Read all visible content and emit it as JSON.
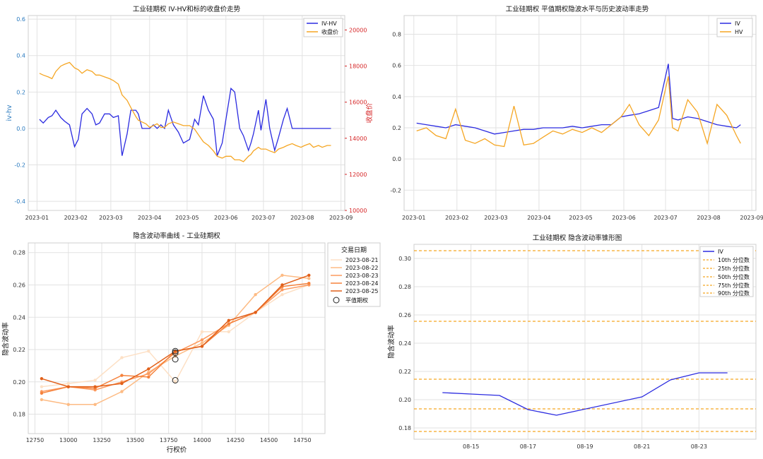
{
  "chart_data": [
    {
      "type": "line",
      "title": "工业硅期权 IV-HV和标的收盘价走势",
      "ylabel": "iv-hv",
      "y2label": "收盘价",
      "ylim": [
        -0.45,
        0.62
      ],
      "y2lim": [
        10000,
        20800
      ],
      "yticks": [
        -0.4,
        -0.2,
        0.0,
        0.2,
        0.4,
        0.6
      ],
      "y2ticks": [
        10000,
        12000,
        14000,
        16000,
        18000,
        20000
      ],
      "xlim": [
        "2022-12-25",
        "2023-09-04"
      ],
      "xticks": [
        "2023-01",
        "2023-02",
        "2023-03",
        "2023-04",
        "2023-05",
        "2023-06",
        "2023-07",
        "2023-08",
        "2023-09"
      ],
      "xtick_dates": [
        "2023-01-01",
        "2023-02-01",
        "2023-03-01",
        "2023-04-01",
        "2023-05-01",
        "2023-06-01",
        "2023-07-01",
        "2023-08-01",
        "2023-09-01"
      ],
      "grid": true,
      "legend_position": "top-right",
      "series": [
        {
          "name": "IV-HV",
          "axis": "left",
          "color": "#2b2be0",
          "x": [
            "2023-01-03",
            "2023-01-06",
            "2023-01-10",
            "2023-01-13",
            "2023-01-16",
            "2023-01-20",
            "2023-01-23",
            "2023-01-27",
            "2023-01-31",
            "2023-02-03",
            "2023-02-06",
            "2023-02-10",
            "2023-02-14",
            "2023-02-17",
            "2023-02-20",
            "2023-02-24",
            "2023-02-28",
            "2023-03-03",
            "2023-03-07",
            "2023-03-10",
            "2023-03-14",
            "2023-03-17",
            "2023-03-21",
            "2023-03-23",
            "2023-03-26",
            "2023-03-29",
            "2023-04-01",
            "2023-04-04",
            "2023-04-07",
            "2023-04-10",
            "2023-04-13",
            "2023-04-16",
            "2023-04-20",
            "2023-04-24",
            "2023-04-28",
            "2023-05-03",
            "2023-05-07",
            "2023-05-10",
            "2023-05-14",
            "2023-05-18",
            "2023-05-22",
            "2023-05-25",
            "2023-05-29",
            "2023-06-01",
            "2023-06-05",
            "2023-06-08",
            "2023-06-12",
            "2023-06-15",
            "2023-06-19",
            "2023-06-21",
            "2023-06-23",
            "2023-06-27",
            "2023-06-29",
            "2023-07-03",
            "2023-07-06",
            "2023-07-10",
            "2023-07-13",
            "2023-07-17",
            "2023-07-20",
            "2023-07-24",
            "2023-07-27",
            "2023-07-31",
            "2023-08-03",
            "2023-08-07",
            "2023-08-10",
            "2023-08-14",
            "2023-08-17",
            "2023-08-21",
            "2023-08-24"
          ],
          "y": [
            0.05,
            0.03,
            0.06,
            0.07,
            0.1,
            0.06,
            0.04,
            0.02,
            -0.1,
            -0.06,
            0.08,
            0.11,
            0.08,
            0.02,
            0.03,
            0.08,
            0.08,
            0.06,
            0.07,
            -0.15,
            -0.03,
            0.1,
            0.1,
            0.08,
            0.0,
            0.0,
            0.0,
            0.02,
            0.0,
            0.02,
            0.0,
            0.1,
            0.02,
            -0.02,
            -0.08,
            -0.06,
            0.05,
            0.02,
            0.18,
            0.1,
            0.05,
            -0.15,
            -0.08,
            0.05,
            0.22,
            0.2,
            0.0,
            -0.04,
            -0.12,
            -0.08,
            -0.03,
            0.1,
            -0.01,
            0.16,
            0.0,
            -0.12,
            -0.05,
            0.05,
            0.11,
            0.0,
            0.0,
            0.0,
            0.0,
            0.0,
            0.0,
            0.0,
            0.0,
            0.0,
            0.0
          ]
        },
        {
          "name": "收盘价",
          "axis": "right",
          "color": "#f5a623",
          "x": [
            "2023-01-03",
            "2023-01-06",
            "2023-01-10",
            "2023-01-13",
            "2023-01-16",
            "2023-01-20",
            "2023-01-23",
            "2023-01-27",
            "2023-01-31",
            "2023-02-03",
            "2023-02-06",
            "2023-02-10",
            "2023-02-14",
            "2023-02-17",
            "2023-02-20",
            "2023-02-24",
            "2023-02-28",
            "2023-03-03",
            "2023-03-07",
            "2023-03-10",
            "2023-03-14",
            "2023-03-17",
            "2023-03-21",
            "2023-03-23",
            "2023-03-26",
            "2023-03-29",
            "2023-04-01",
            "2023-04-04",
            "2023-04-07",
            "2023-04-10",
            "2023-04-13",
            "2023-04-16",
            "2023-04-20",
            "2023-04-24",
            "2023-04-28",
            "2023-05-03",
            "2023-05-07",
            "2023-05-10",
            "2023-05-14",
            "2023-05-18",
            "2023-05-22",
            "2023-05-25",
            "2023-05-29",
            "2023-06-01",
            "2023-06-05",
            "2023-06-08",
            "2023-06-12",
            "2023-06-15",
            "2023-06-19",
            "2023-06-21",
            "2023-06-23",
            "2023-06-27",
            "2023-06-29",
            "2023-07-03",
            "2023-07-06",
            "2023-07-10",
            "2023-07-13",
            "2023-07-17",
            "2023-07-20",
            "2023-07-24",
            "2023-07-27",
            "2023-07-31",
            "2023-08-03",
            "2023-08-07",
            "2023-08-10",
            "2023-08-14",
            "2023-08-17",
            "2023-08-21",
            "2023-08-24"
          ],
          "y": [
            17600,
            17500,
            17400,
            17300,
            17700,
            18000,
            18100,
            18200,
            17900,
            17800,
            17600,
            17800,
            17700,
            17500,
            17500,
            17400,
            17300,
            17200,
            17000,
            16400,
            16100,
            15700,
            15200,
            15000,
            14900,
            14800,
            14600,
            14700,
            14800,
            14600,
            14600,
            14800,
            14900,
            14800,
            14700,
            14700,
            14500,
            14200,
            13800,
            13600,
            13300,
            13000,
            12900,
            13000,
            13000,
            12800,
            12800,
            12700,
            13000,
            13100,
            13300,
            13500,
            13400,
            13400,
            13300,
            13200,
            13400,
            13500,
            13600,
            13700,
            13600,
            13500,
            13600,
            13700,
            13500,
            13600,
            13500,
            13600,
            13600
          ]
        }
      ]
    },
    {
      "type": "line",
      "title": "工业硅期权 平值期权隐波水平与历史波动率走势",
      "ylim": [
        -0.33,
        0.92
      ],
      "yticks": [
        -0.2,
        0.0,
        0.2,
        0.4,
        0.6,
        0.8
      ],
      "xlim": [
        "2022-12-25",
        "2023-09-04"
      ],
      "xticks": [
        "2023-01",
        "2023-02",
        "2023-03",
        "2023-04",
        "2023-05",
        "2023-06",
        "2023-07",
        "2023-08",
        "2023-09"
      ],
      "xtick_dates": [
        "2023-01-01",
        "2023-02-01",
        "2023-03-01",
        "2023-04-01",
        "2023-05-01",
        "2023-06-01",
        "2023-07-01",
        "2023-08-01",
        "2023-09-01"
      ],
      "grid": true,
      "legend_position": "top-right",
      "series": [
        {
          "name": "IV",
          "color": "#2b2be0",
          "x": [
            "2023-01-03",
            "2023-01-10",
            "2023-01-17",
            "2023-01-24",
            "2023-01-31",
            "2023-02-07",
            "2023-02-14",
            "2023-02-21",
            "2023-02-28",
            "2023-03-07",
            "2023-03-14",
            "2023-03-21",
            "2023-03-28",
            "2023-04-04",
            "2023-04-11",
            "2023-04-18",
            "2023-04-25",
            "2023-05-02",
            "2023-05-09",
            "2023-05-16",
            "2023-05-23",
            "2023-05-30",
            "2023-06-05",
            "2023-06-12",
            "2023-06-19",
            "2023-06-26",
            "2023-07-03",
            "2023-07-06",
            "2023-07-10",
            "2023-07-17",
            "2023-07-24",
            "2023-07-31",
            "2023-08-07",
            "2023-08-14",
            "2023-08-21",
            "2023-08-24"
          ],
          "y": [
            0.23,
            0.22,
            0.21,
            0.2,
            0.22,
            0.21,
            0.2,
            0.18,
            0.16,
            0.17,
            0.18,
            0.19,
            0.19,
            0.2,
            0.2,
            0.2,
            0.21,
            0.2,
            0.21,
            0.22,
            0.22,
            0.27,
            0.28,
            0.29,
            0.31,
            0.33,
            0.61,
            0.26,
            0.25,
            0.27,
            0.26,
            0.24,
            0.22,
            0.21,
            0.2,
            0.22
          ]
        },
        {
          "name": "HV",
          "color": "#f5a623",
          "x": [
            "2023-01-03",
            "2023-01-10",
            "2023-01-17",
            "2023-01-24",
            "2023-01-31",
            "2023-02-07",
            "2023-02-14",
            "2023-02-21",
            "2023-02-28",
            "2023-03-07",
            "2023-03-14",
            "2023-03-21",
            "2023-03-28",
            "2023-04-04",
            "2023-04-11",
            "2023-04-18",
            "2023-04-25",
            "2023-05-02",
            "2023-05-09",
            "2023-05-16",
            "2023-05-23",
            "2023-05-30",
            "2023-06-05",
            "2023-06-12",
            "2023-06-19",
            "2023-06-26",
            "2023-07-03",
            "2023-07-06",
            "2023-07-10",
            "2023-07-17",
            "2023-07-24",
            "2023-07-31",
            "2023-08-07",
            "2023-08-14",
            "2023-08-21",
            "2023-08-24"
          ],
          "y": [
            0.18,
            0.2,
            0.15,
            0.13,
            0.32,
            0.12,
            0.1,
            0.13,
            0.09,
            0.08,
            0.34,
            0.09,
            0.1,
            0.14,
            0.18,
            0.16,
            0.19,
            0.17,
            0.2,
            0.17,
            0.22,
            0.27,
            0.35,
            0.22,
            0.15,
            0.25,
            0.53,
            0.2,
            0.18,
            0.38,
            0.3,
            0.1,
            0.35,
            0.28,
            0.15,
            0.1
          ]
        }
      ]
    },
    {
      "type": "line",
      "title": "隐含波动率曲线 - 工业硅期权",
      "xlabel": "行权价",
      "ylabel": "隐含波动率",
      "xlim": [
        12700,
        14920
      ],
      "ylim": [
        0.168,
        0.286
      ],
      "xticks": [
        12750,
        13000,
        13250,
        13500,
        13750,
        14000,
        14250,
        14500,
        14750
      ],
      "yticks": [
        0.18,
        0.2,
        0.22,
        0.24,
        0.26,
        0.28
      ],
      "grid": true,
      "legend_position": "top-right",
      "legend_title": "交易日期",
      "series": [
        {
          "name": "2023-08-21",
          "color": "#fde0c5",
          "x": [
            12800,
            13000,
            13200,
            13400,
            13600,
            13800,
            14000,
            14200,
            14400,
            14600,
            14800
          ],
          "y": [
            0.197,
            0.199,
            0.201,
            0.215,
            0.219,
            0.2,
            0.231,
            0.231,
            0.243,
            0.254,
            0.26
          ]
        },
        {
          "name": "2023-08-22",
          "color": "#fdbb84",
          "x": [
            12800,
            13000,
            13200,
            13400,
            13600,
            13800,
            14000,
            14200,
            14400,
            14600,
            14800
          ],
          "y": [
            0.189,
            0.186,
            0.186,
            0.194,
            0.206,
            0.216,
            0.224,
            0.235,
            0.254,
            0.266,
            0.264
          ]
        },
        {
          "name": "2023-08-23",
          "color": "#fc9a5f",
          "x": [
            12800,
            13000,
            13200,
            13400,
            13600,
            13800,
            14000,
            14200,
            14400,
            14600,
            14800
          ],
          "y": [
            0.194,
            0.197,
            0.195,
            0.2,
            0.205,
            0.218,
            0.226,
            0.236,
            0.243,
            0.257,
            0.26
          ]
        },
        {
          "name": "2023-08-24",
          "color": "#f5823c",
          "x": [
            12800,
            13000,
            13200,
            13400,
            13600,
            13800,
            14000,
            14200,
            14400,
            14600,
            14800
          ],
          "y": [
            0.193,
            0.197,
            0.196,
            0.204,
            0.203,
            0.219,
            0.222,
            0.236,
            0.243,
            0.259,
            0.261
          ]
        },
        {
          "name": "2023-08-25",
          "color": "#e1601a",
          "x": [
            12800,
            13000,
            13200,
            13400,
            13600,
            13800,
            14000,
            14200,
            14400,
            14600,
            14800
          ],
          "y": [
            0.202,
            0.197,
            0.197,
            0.199,
            0.208,
            0.219,
            0.222,
            0.238,
            0.243,
            0.26,
            0.266
          ]
        }
      ],
      "markers": {
        "name": "平值期权",
        "x": [
          13800,
          13800,
          13800,
          13800
        ],
        "y": [
          0.201,
          0.214,
          0.218,
          0.219
        ]
      }
    },
    {
      "type": "line",
      "title": "工业硅期权 隐含波动率锥形图",
      "ylabel": "隐含波动率",
      "xlim": [
        "2023-08-13",
        "2023-08-25"
      ],
      "ylim": [
        0.172,
        0.31
      ],
      "xticks": [
        "08-15",
        "08-17",
        "08-19",
        "08-21",
        "08-23"
      ],
      "xtick_dates": [
        "2023-08-15",
        "2023-08-17",
        "2023-08-19",
        "2023-08-21",
        "2023-08-23"
      ],
      "yticks": [
        0.18,
        0.2,
        0.22,
        0.24,
        0.26,
        0.28,
        0.3
      ],
      "grid": true,
      "legend_position": "top-right",
      "series": [
        {
          "name": "IV",
          "color": "#2b2be0",
          "x": [
            "2023-08-14",
            "2023-08-15",
            "2023-08-16",
            "2023-08-17",
            "2023-08-18",
            "2023-08-21",
            "2023-08-22",
            "2023-08-23",
            "2023-08-24"
          ],
          "y": [
            0.205,
            0.204,
            0.203,
            0.193,
            0.189,
            0.202,
            0.214,
            0.219,
            0.219
          ]
        }
      ],
      "hlines": [
        {
          "name": "10th 分位数",
          "y": 0.1775
        },
        {
          "name": "25th 分位数",
          "y": 0.1935
        },
        {
          "name": "50th 分位数",
          "y": 0.2145
        },
        {
          "name": "75th 分位数",
          "y": 0.2555
        },
        {
          "name": "90th 分位数",
          "y": 0.3055
        }
      ],
      "hline_color": "#f5a623"
    }
  ]
}
